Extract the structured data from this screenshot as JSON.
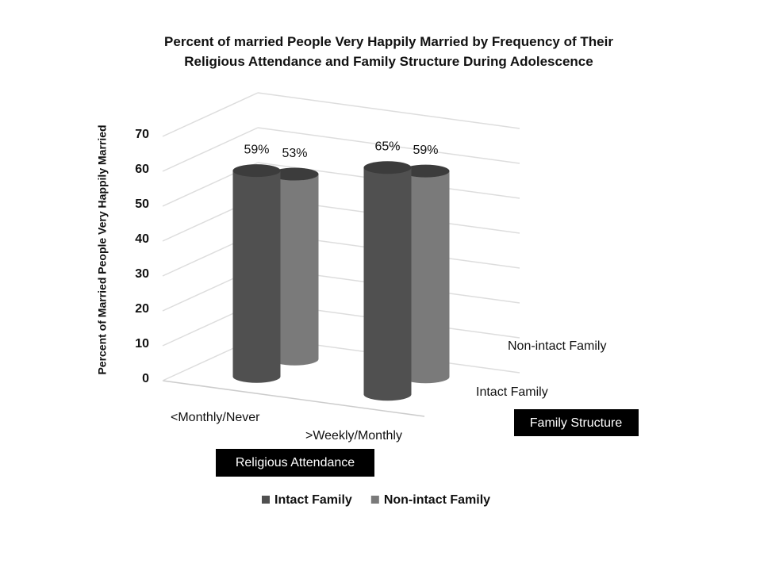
{
  "chart_data": {
    "type": "bar3d",
    "title": "Percent of married People Very Happily Married by Frequency of Their Religious Attendance and Family Structure During Adolescence",
    "y_label": "Percent of Married People Very Happily Married",
    "x_label": "Religious Attendance",
    "z_label": "Family Structure",
    "categories": [
      "<Monthly/Never",
      ">Weekly/Monthly"
    ],
    "series": [
      {
        "name": "Intact Family",
        "color": "#505050",
        "values": [
          59,
          65
        ],
        "value_labels": [
          "59%",
          "65%"
        ]
      },
      {
        "name": "Non-intact Family",
        "color": "#7a7a7a",
        "values": [
          53,
          59
        ],
        "value_labels": [
          "53%",
          "59%"
        ]
      }
    ],
    "ylim": [
      0,
      70
    ],
    "yticks": [
      0,
      10,
      20,
      30,
      40,
      50,
      60,
      70
    ],
    "grid": true
  }
}
